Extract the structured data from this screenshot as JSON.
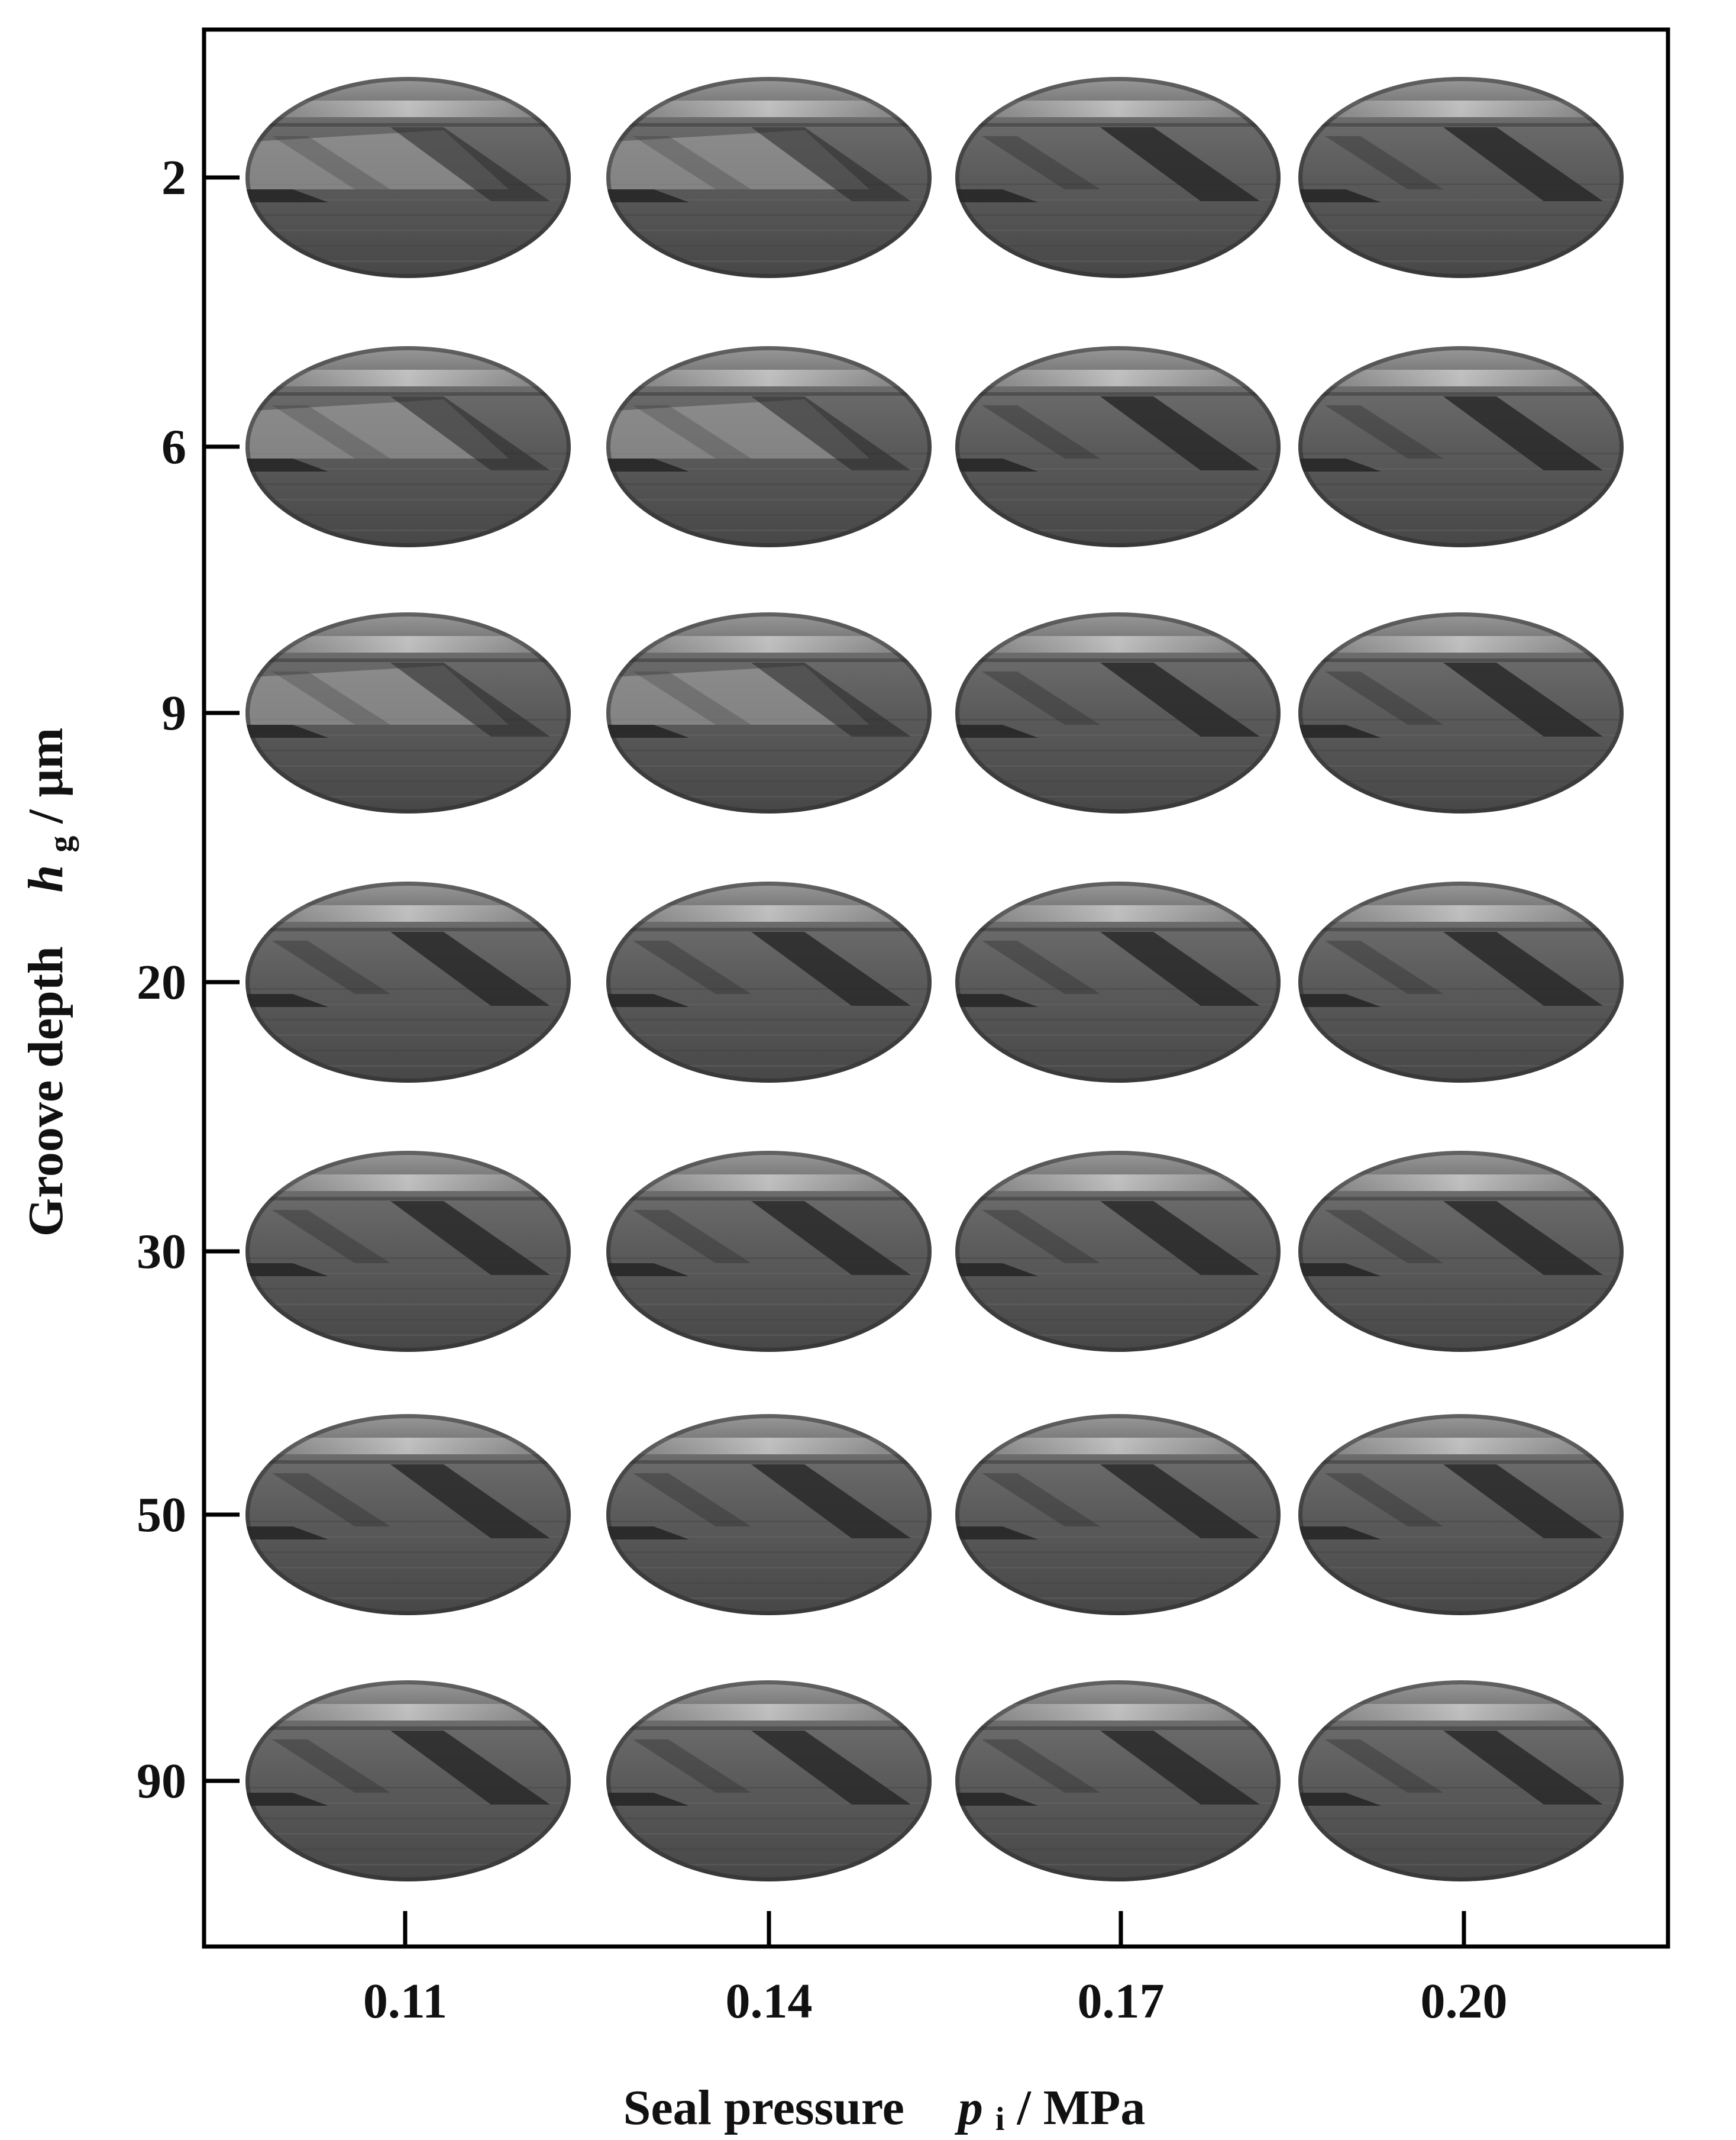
{
  "figure": {
    "y_axis": {
      "title": "Groove depth",
      "symbol": "h",
      "subscript": "g",
      "unit": " / μm",
      "tick_labels": [
        "2",
        "6",
        "9",
        "20",
        "30",
        "50",
        "90"
      ]
    },
    "x_axis": {
      "title": "Seal pressure",
      "symbol": "p",
      "subscript": "i",
      "unit": " / MPa",
      "tick_labels": [
        "0.11",
        "0.14",
        "0.17",
        "0.20"
      ]
    },
    "grid": {
      "rows": 7,
      "columns": 4,
      "image_shape": "ellipse",
      "content": "grayscale photographs of the seal face with spiral groove film patterns"
    }
  }
}
